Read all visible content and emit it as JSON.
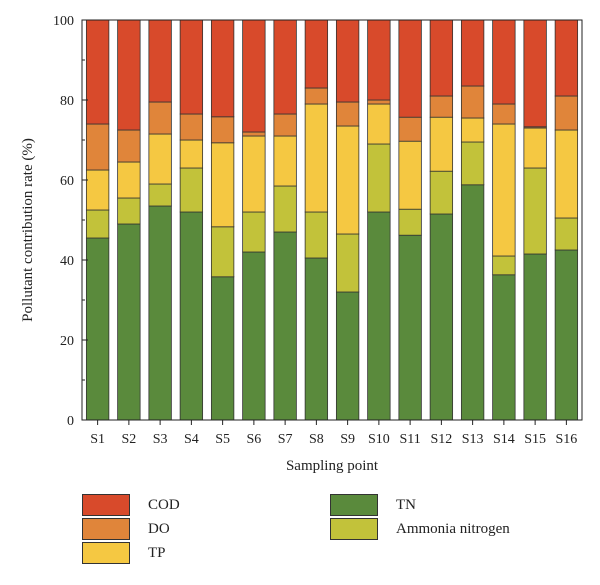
{
  "chart_data": {
    "type": "bar",
    "stacked": true,
    "xlabel": "Sampling point",
    "ylabel": "Pollutant contribution rate (%)",
    "ylim": [
      0,
      100
    ],
    "yticks": [
      "0",
      "20",
      "40",
      "60",
      "80",
      "100"
    ],
    "categories": [
      "S1",
      "S2",
      "S3",
      "S4",
      "S5",
      "S6",
      "S7",
      "S8",
      "S9",
      "S10",
      "S11",
      "S12",
      "S13",
      "S14",
      "S15",
      "S16"
    ],
    "series": [
      {
        "name": "TN",
        "color": "#5a8a3c",
        "values": [
          45.5,
          49,
          53.5,
          52,
          35.8,
          42,
          47,
          40.5,
          32,
          52,
          46.2,
          51.5,
          58.8,
          36.3,
          41.5,
          42.5
        ]
      },
      {
        "name": "Ammonia nitrogen",
        "color": "#c2c23a",
        "values": [
          7,
          6.5,
          5.5,
          11,
          12.5,
          10,
          11.5,
          11.5,
          14.5,
          17,
          6.5,
          10.7,
          10.7,
          4.7,
          21.5,
          8
        ]
      },
      {
        "name": "TP",
        "color": "#f5c842",
        "values": [
          10,
          9,
          12.5,
          7,
          21,
          19,
          12.5,
          27,
          27,
          10,
          17,
          13.5,
          6,
          33,
          10,
          22
        ]
      },
      {
        "name": "DO",
        "color": "#e0853a",
        "values": [
          11.5,
          8,
          8,
          6.5,
          6.5,
          1,
          5.5,
          4,
          6,
          1,
          6,
          5.3,
          8,
          5,
          0.3,
          8.5
        ]
      },
      {
        "name": "COD",
        "color": "#d84a2b",
        "values": [
          26,
          27.5,
          20.5,
          23.5,
          24.2,
          28,
          23.5,
          17,
          20.5,
          20,
          24.3,
          19,
          16.5,
          21,
          26.7,
          19
        ]
      }
    ],
    "legend_order": [
      "COD",
      "TN",
      "DO",
      "Ammonia nitrogen",
      "TP"
    ],
    "legend_position": "bottom"
  }
}
